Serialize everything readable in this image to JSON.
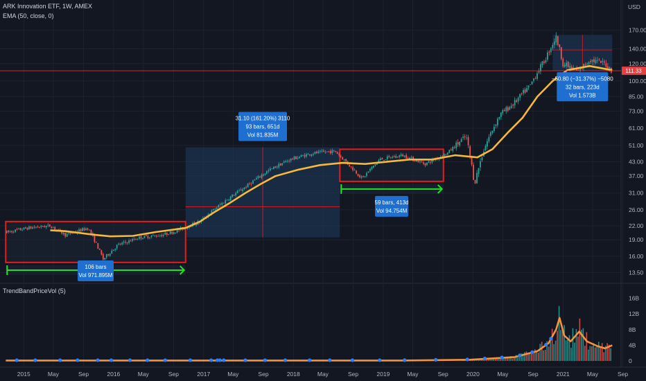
{
  "header": {
    "symbol_line": "ARK Innovation ETF, 1W, AMEX",
    "indicator_line": "EMA (50, close, 0)",
    "sub_indicator": "TrendBandPriceVol (5)",
    "currency": "USD"
  },
  "colors": {
    "background": "#131722",
    "up": "#26a69a",
    "down": "#ef5350",
    "ema": "#f7b93a",
    "price_line": "#e84040",
    "box_red": "#e81c1c",
    "arrow_green": "#22e322",
    "range_fill": "#1f3a5f",
    "label_blue": "#1e6fcf",
    "trend_orange": "#f5923e",
    "dot_blue": "#2d7ff9"
  },
  "price_axis": {
    "scale": "log",
    "ticks": [
      "170.00",
      "140.00",
      "120.00",
      "100.00",
      "85.00",
      "73.00",
      "61.00",
      "51.00",
      "43.00",
      "37.00",
      "31.00",
      "26.00",
      "22.00",
      "19.00",
      "16.00",
      "13.50"
    ],
    "last_price": "111.33"
  },
  "volume_axis": {
    "ticks": [
      "16B",
      "12B",
      "8B",
      "4B",
      "0"
    ]
  },
  "time_axis": {
    "ticks": [
      "2015",
      "May",
      "Sep",
      "2016",
      "May",
      "Sep",
      "2017",
      "May",
      "Sep",
      "2018",
      "May",
      "Sep",
      "2019",
      "May",
      "Sep",
      "2020",
      "May",
      "Sep",
      "2021",
      "May",
      "Sep"
    ]
  },
  "annotations": {
    "range1": {
      "line1": "106 bars",
      "line2": "Vol 971.895M"
    },
    "range2": {
      "line1": "31.10 (161.20%) 3110",
      "line2": "93 bars, 651d",
      "line3": "Vol 81.835M"
    },
    "range3": {
      "line1": "59 bars, 413d",
      "line2": "Vol 94.754M"
    },
    "range4": {
      "line1": "−50.80 (−31.37%) −5080",
      "line2": "32 bars, 223d",
      "line3": "Vol 1.573B"
    }
  },
  "chart_data": {
    "type": "candlestick",
    "x_unit": "date",
    "y_scale": "log",
    "ylim": [
      12.5,
      185
    ],
    "ema_points": [
      [
        "2015-07-01",
        21.0
      ],
      [
        "2015-09-01",
        20.8
      ],
      [
        "2016-01-01",
        20.0
      ],
      [
        "2016-03-01",
        19.7
      ],
      [
        "2016-06-01",
        19.8
      ],
      [
        "2016-09-01",
        20.6
      ],
      [
        "2017-01-01",
        21.5
      ],
      [
        "2017-03-01",
        23.0
      ],
      [
        "2017-05-01",
        25.5
      ],
      [
        "2017-07-01",
        28.0
      ],
      [
        "2017-09-01",
        31.0
      ],
      [
        "2017-11-01",
        34.0
      ],
      [
        "2018-01-01",
        37.0
      ],
      [
        "2018-04-01",
        39.5
      ],
      [
        "2018-07-01",
        41.5
      ],
      [
        "2018-10-01",
        42.5
      ],
      [
        "2019-01-01",
        42.0
      ],
      [
        "2019-04-01",
        43.0
      ],
      [
        "2019-07-01",
        44.0
      ],
      [
        "2019-10-01",
        44.0
      ],
      [
        "2020-01-01",
        46.0
      ],
      [
        "2020-04-01",
        45.0
      ],
      [
        "2020-06-01",
        49.0
      ],
      [
        "2020-08-01",
        58.0
      ],
      [
        "2020-10-01",
        68.0
      ],
      [
        "2020-12-01",
        85.0
      ],
      [
        "2021-02-01",
        100.0
      ],
      [
        "2021-04-01",
        112.0
      ],
      [
        "2021-07-01",
        117.0
      ],
      [
        "2021-10-01",
        112.0
      ]
    ],
    "price_path": [
      [
        "2015-01-01",
        20.5
      ],
      [
        "2015-04-01",
        21.5
      ],
      [
        "2015-07-01",
        22.0
      ],
      [
        "2015-09-01",
        20.0
      ],
      [
        "2015-12-01",
        21.5
      ],
      [
        "2016-02-01",
        15.5
      ],
      [
        "2016-04-01",
        18.0
      ],
      [
        "2016-07-01",
        19.5
      ],
      [
        "2016-10-01",
        20.0
      ],
      [
        "2016-12-01",
        21.0
      ],
      [
        "2017-03-01",
        23.0
      ],
      [
        "2017-06-01",
        28.0
      ],
      [
        "2017-09-01",
        33.0
      ],
      [
        "2017-12-01",
        39.0
      ],
      [
        "2018-03-01",
        44.0
      ],
      [
        "2018-06-01",
        47.0
      ],
      [
        "2018-09-01",
        48.0
      ],
      [
        "2018-11-01",
        41.0
      ],
      [
        "2018-12-20",
        36.0
      ],
      [
        "2019-03-01",
        44.0
      ],
      [
        "2019-06-01",
        46.0
      ],
      [
        "2019-09-01",
        42.0
      ],
      [
        "2019-12-01",
        47.0
      ],
      [
        "2020-02-15",
        56.0
      ],
      [
        "2020-03-20",
        34.0
      ],
      [
        "2020-05-01",
        50.0
      ],
      [
        "2020-07-01",
        70.0
      ],
      [
        "2020-09-01",
        80.0
      ],
      [
        "2020-11-01",
        95.0
      ],
      [
        "2021-01-01",
        125.0
      ],
      [
        "2021-02-15",
        158.0
      ],
      [
        "2021-03-15",
        120.0
      ],
      [
        "2021-05-15",
        110.0
      ],
      [
        "2021-07-01",
        125.0
      ],
      [
        "2021-09-01",
        120.0
      ],
      [
        "2021-10-01",
        111.33
      ]
    ],
    "volume_trend_points": [
      [
        "2015-01-01",
        0.1
      ],
      [
        "2019-06-01",
        0.1
      ],
      [
        "2020-03-01",
        0.3
      ],
      [
        "2020-09-01",
        1.0
      ],
      [
        "2020-12-01",
        2.5
      ],
      [
        "2021-01-15",
        4.5
      ],
      [
        "2021-02-15",
        8.0
      ],
      [
        "2021-03-01",
        11.0
      ],
      [
        "2021-03-20",
        6.5
      ],
      [
        "2021-04-15",
        5.0
      ],
      [
        "2021-05-20",
        7.5
      ],
      [
        "2021-06-20",
        5.0
      ],
      [
        "2021-08-01",
        3.8
      ],
      [
        "2021-09-01",
        3.2
      ],
      [
        "2021-10-01",
        4.0
      ]
    ],
    "volume_ylim": [
      0,
      17
    ],
    "volume_unit": "B",
    "ranges": [
      {
        "name": "range1",
        "start": "2015-01-01",
        "end": "2017-01-01",
        "high": 23.0,
        "low": 15.0,
        "style": "box"
      },
      {
        "name": "range2",
        "start": "2017-01-01",
        "end": "2018-09-20",
        "high": 50.0,
        "low": 19.5,
        "style": "measure"
      },
      {
        "name": "range3",
        "start": "2018-09-20",
        "end": "2019-11-15",
        "high": 49.0,
        "low": 35.0,
        "style": "box"
      },
      {
        "name": "range4",
        "start": "2021-02-01",
        "end": "2021-10-01",
        "high": 162.0,
        "low": 111.2,
        "style": "measure"
      }
    ]
  }
}
